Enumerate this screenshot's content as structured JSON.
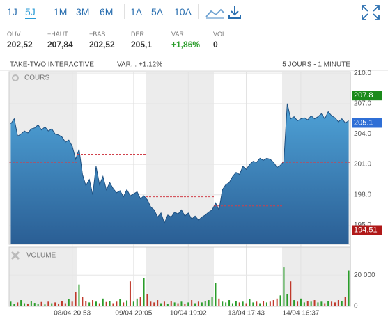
{
  "toolbar": {
    "periods": [
      "1J",
      "5J",
      "1M",
      "3M",
      "6M",
      "1A",
      "5A",
      "10A"
    ],
    "selected": 1
  },
  "stats": [
    {
      "label": "OUV.",
      "value": "202,52"
    },
    {
      "label": "+HAUT",
      "value": "207,84"
    },
    {
      "label": "+BAS",
      "value": "202,52"
    },
    {
      "label": "DER.",
      "value": "205,1"
    },
    {
      "label": "VAR.",
      "value": "+1,86%",
      "color": "#2a9d2a"
    },
    {
      "label": "VOL.",
      "value": "0"
    }
  ],
  "chart_data": [
    {
      "type": "area",
      "title": "TAKE-TWO INTERACTIVE",
      "subtitle": "VAR. : +1.12%",
      "annotation": "5 JOURS - 1 MINUTE",
      "panel_label": "COURS",
      "categories": [
        null,
        null,
        null,
        null,
        null,
        null,
        null,
        null,
        null,
        null,
        null,
        null,
        null,
        null,
        null,
        null,
        null,
        null,
        "08/04 20:53",
        null,
        null,
        null,
        null,
        null,
        null,
        null,
        null,
        null,
        null,
        null,
        null,
        null,
        null,
        null,
        null,
        null,
        "09/04 20:05",
        null,
        null,
        null,
        null,
        null,
        null,
        null,
        null,
        null,
        null,
        null,
        null,
        null,
        null,
        null,
        "10/04 19:02",
        null,
        null,
        null,
        null,
        null,
        null,
        null,
        null,
        null,
        null,
        null,
        null,
        null,
        null,
        null,
        null,
        "13/04 17:43",
        null,
        null,
        null,
        null,
        null,
        null,
        null,
        null,
        null,
        null,
        null,
        null,
        null,
        null,
        null,
        "14/04 16:37",
        null,
        null,
        null,
        null,
        null,
        null,
        null,
        null,
        null,
        null,
        null,
        null,
        null,
        null
      ],
      "series": [
        {
          "name": "COURS",
          "color": "#1d4f80",
          "values": [
            205.0,
            205.5,
            203.8,
            204.0,
            204.3,
            204.1,
            204.5,
            204.6,
            204.9,
            204.4,
            204.7,
            204.3,
            204.5,
            204.0,
            203.9,
            203.7,
            203.2,
            203.4,
            202.8,
            201.5,
            202.5,
            200.0,
            198.9,
            199.5,
            198.0,
            200.8,
            199.0,
            199.8,
            198.5,
            199.2,
            198.6,
            198.2,
            198.4,
            197.8,
            198.5,
            197.9,
            198.1,
            198.3,
            197.6,
            197.9,
            197.5,
            196.8,
            196.5,
            195.8,
            196.2,
            195.2,
            196.0,
            195.8,
            196.3,
            196.1,
            196.5,
            195.9,
            196.2,
            195.6,
            195.9,
            195.5,
            195.8,
            196.0,
            196.3,
            196.5,
            197.2,
            196.5,
            198.5,
            199.0,
            199.2,
            199.8,
            200.2,
            200.0,
            200.8,
            200.5,
            201.0,
            201.3,
            201.2,
            201.6,
            201.4,
            201.6,
            201.5,
            201.2,
            200.7,
            200.9,
            201.3,
            207.0,
            205.5,
            205.7,
            205.3,
            205.5,
            205.6,
            205.4,
            205.8,
            205.5,
            205.7,
            206.0,
            205.5,
            206.2,
            205.8,
            205.6,
            205.2,
            205.5,
            205.1,
            205.3
          ]
        }
      ],
      "reference_lines": [
        {
          "start": 0,
          "end": 20,
          "value": 201.2
        },
        {
          "start": 20,
          "end": 40,
          "value": 202.0
        },
        {
          "start": 40,
          "end": 60,
          "value": 197.8
        },
        {
          "start": 60,
          "end": 80,
          "value": 196.9
        },
        {
          "start": 80,
          "end": 100,
          "value": 201.2
        }
      ],
      "badges": [
        {
          "value": 207.8,
          "label": "207.8",
          "color": "#1a8a1a"
        },
        {
          "value": 205.1,
          "label": "205.1",
          "color": "#2f6fd6"
        },
        {
          "value": 194.51,
          "label": "194.51",
          "color": "#b01818"
        }
      ],
      "ylim": [
        193.1,
        210.15
      ],
      "yticks": [
        {
          "value": 195,
          "label": "195.0"
        },
        {
          "value": 198,
          "label": "198.0"
        },
        {
          "value": 201,
          "label": "201.0"
        },
        {
          "value": 204,
          "label": "204.0"
        },
        {
          "value": 207,
          "label": "207.0"
        },
        {
          "value": 210,
          "label": "210.0"
        }
      ],
      "day_length": 20,
      "shade_color": "#ececec"
    },
    {
      "type": "bar",
      "panel_label": "VOLUME",
      "up_color": "#2a9d2a",
      "down_color": "#c0392b",
      "series": [
        {
          "name": "VOLUME",
          "values": [
            3000,
            1500,
            2500,
            4000,
            2000,
            1800,
            3500,
            2200,
            1500,
            2800,
            1200,
            3000,
            2000,
            2500,
            1800,
            3200,
            2000,
            4500,
            3000,
            9000,
            14000,
            6000,
            3500,
            2500,
            4000,
            3000,
            2000,
            5000,
            2800,
            3500,
            2000,
            3000,
            4500,
            2500,
            3800,
            16000,
            3000,
            5000,
            6000,
            18000,
            8000,
            3000,
            2500,
            4000,
            2000,
            3000,
            1500,
            3500,
            2500,
            2000,
            3000,
            1800,
            2500,
            4000,
            2000,
            3000,
            2500,
            3500,
            4000,
            6000,
            15000,
            5000,
            3000,
            2500,
            4000,
            2000,
            3500,
            2500,
            3000,
            2000,
            4500,
            2500,
            3000,
            2000,
            3500,
            2500,
            3000,
            4000,
            5000,
            7000,
            25000,
            8000,
            16000,
            4000,
            3000,
            5000,
            2500,
            3500,
            3000,
            4000,
            2500,
            3000,
            2000,
            3500,
            3000,
            2500,
            4000,
            3500,
            6000,
            23000
          ]
        }
      ],
      "ylim": [
        0,
        38000
      ],
      "yticks": [
        0,
        {
          "value": 20000,
          "label": "20 000"
        }
      ]
    }
  ]
}
